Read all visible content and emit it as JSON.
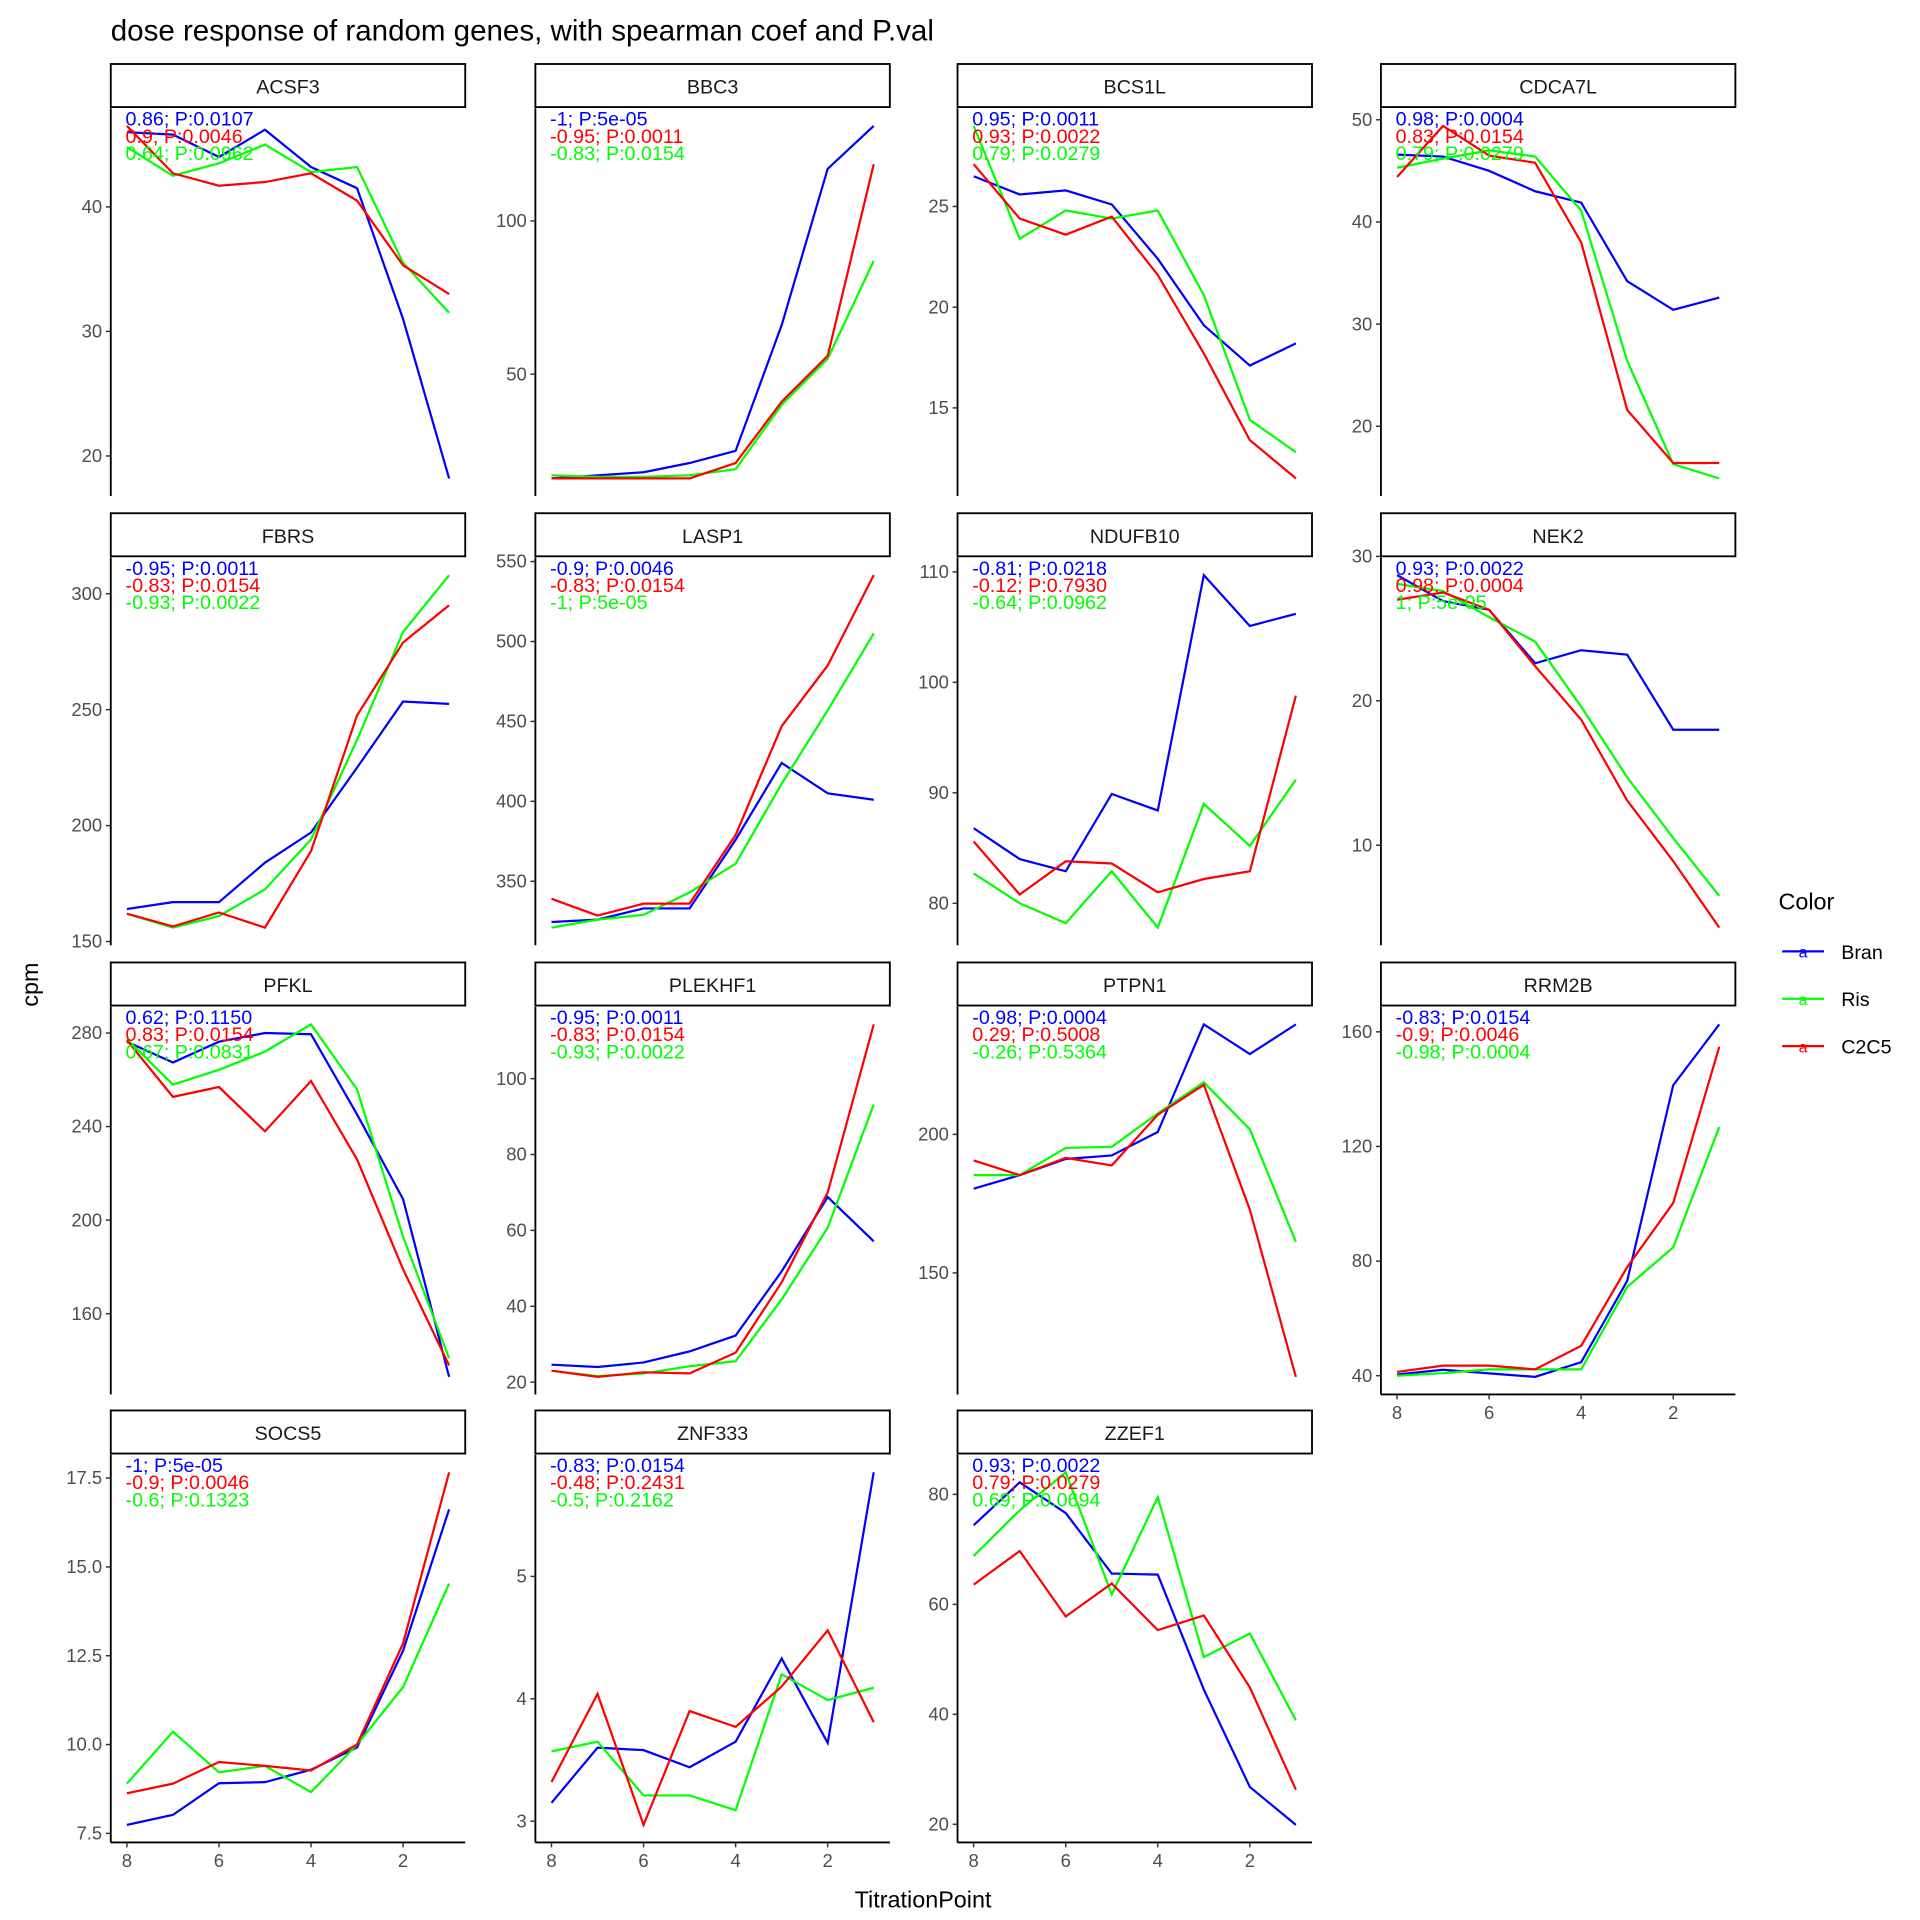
{
  "chart_data": {
    "type": "line",
    "title": "dose response of random genes, with spearman coef and P.val",
    "xlabel": "TitrationPoint",
    "ylabel": "cpm",
    "x": [
      8,
      7,
      6,
      5,
      4,
      3,
      2,
      1
    ],
    "x_axis_reversed": true,
    "x_ticks": [
      8,
      6,
      4,
      2
    ],
    "grid": false,
    "legend": {
      "title": "Color",
      "placement": "right",
      "key_glyph": "a",
      "entries": [
        {
          "name": "Bran",
          "color": "#0000FF"
        },
        {
          "name": "Ris",
          "color": "#00FF00"
        },
        {
          "name": "C2C5",
          "color": "#FF0000"
        }
      ]
    },
    "panels": [
      {
        "name": "ACSF3",
        "y_ticks": [
          "20",
          "30",
          "40"
        ],
        "annotations": [
          {
            "text": "0.86; P:0.0107",
            "color": "#0000FF"
          },
          {
            "text": "0.9; P:0.0046",
            "color": "#FF0000"
          },
          {
            "text": "0.64; P:0.0962",
            "color": "#00FF00"
          }
        ],
        "series": {
          "Bran": [
            46,
            45.8,
            44,
            46.2,
            43.2,
            41.5,
            31,
            18.2
          ],
          "Ris": [
            44.8,
            42.5,
            43.5,
            45,
            42.8,
            43.2,
            35.5,
            31.5
          ],
          "C2C5": [
            46.5,
            42.7,
            41.7,
            42,
            42.7,
            40.5,
            35.3,
            33
          ]
        }
      },
      {
        "name": "BBC3",
        "y_ticks": [
          "50",
          "100"
        ],
        "annotations": [
          {
            "text": "-1; P:5e-05",
            "color": "#0000FF"
          },
          {
            "text": "-0.95; P:0.0011",
            "color": "#FF0000"
          },
          {
            "text": "-0.83; P:0.0154",
            "color": "#00FF00"
          }
        ],
        "series": {
          "Bran": [
            16,
            17,
            18,
            21,
            25,
            66,
            117,
            131
          ],
          "Ris": [
            17,
            16.5,
            16.5,
            17,
            19,
            40,
            55,
            87
          ],
          "C2C5": [
            16,
            16,
            16,
            16,
            21,
            41,
            56,
            118.5
          ]
        }
      },
      {
        "name": "BCS1L",
        "y_ticks": [
          "15",
          "20",
          "25"
        ],
        "annotations": [
          {
            "text": "0.95; P:0.0011",
            "color": "#0000FF"
          },
          {
            "text": "0.93; P:0.0022",
            "color": "#FF0000"
          },
          {
            "text": "0.79; P:0.0279",
            "color": "#00FF00"
          }
        ],
        "series": {
          "Bran": [
            26.5,
            25.6,
            25.8,
            25.1,
            22.4,
            19.1,
            17.1,
            18.2
          ],
          "Ris": [
            29,
            23.4,
            24.8,
            24.4,
            24.8,
            20.6,
            14.4,
            12.8
          ],
          "C2C5": [
            27.1,
            24.4,
            23.6,
            24.5,
            21.6,
            17.7,
            13.4,
            11.5
          ]
        }
      },
      {
        "name": "CDCA7L",
        "y_ticks": [
          "20",
          "30",
          "40",
          "50"
        ],
        "annotations": [
          {
            "text": "0.98; P:0.0004",
            "color": "#0000FF"
          },
          {
            "text": "0.83; P:0.0154",
            "color": "#FF0000"
          },
          {
            "text": "0.79; P:0.0279",
            "color": "#00FF00"
          }
        ],
        "series": {
          "Bran": [
            46.6,
            46.4,
            45,
            43,
            41.9,
            34.2,
            31.4,
            32.6
          ],
          "Ris": [
            45.3,
            46.2,
            47,
            46.4,
            41.1,
            26.4,
            16.3,
            14.9
          ],
          "C2C5": [
            44.4,
            49.4,
            46.5,
            45.8,
            38,
            21.6,
            16.4,
            16.4
          ]
        }
      },
      {
        "name": "FBRS",
        "y_ticks": [
          "150",
          "200",
          "250",
          "300"
        ],
        "annotations": [
          {
            "text": "-0.95; P:0.0011",
            "color": "#0000FF"
          },
          {
            "text": "-0.83; P:0.0154",
            "color": "#FF0000"
          },
          {
            "text": "-0.93; P:0.0022",
            "color": "#00FF00"
          }
        ],
        "series": {
          "Bran": [
            164,
            167,
            167,
            184,
            197,
            225,
            253.5,
            252.5
          ],
          "Ris": [
            162,
            156,
            161,
            172.5,
            194,
            237,
            283.5,
            308
          ],
          "C2C5": [
            162,
            156.5,
            162.5,
            156,
            189,
            247.5,
            279,
            295
          ]
        }
      },
      {
        "name": "LASP1",
        "y_ticks": [
          "350",
          "400",
          "450",
          "500",
          "550"
        ],
        "annotations": [
          {
            "text": "-0.9; P:0.0046",
            "color": "#0000FF"
          },
          {
            "text": "-0.83; P:0.0154",
            "color": "#FF0000"
          },
          {
            "text": "-1; P:5e-05",
            "color": "#00FF00"
          }
        ],
        "series": {
          "Bran": [
            324.5,
            326,
            333,
            333,
            376,
            424,
            405,
            401
          ],
          "Ris": [
            321,
            326,
            329,
            343,
            361,
            411,
            457,
            505
          ],
          "C2C5": [
            339,
            328.5,
            336,
            336,
            379,
            447,
            485,
            541.5
          ]
        }
      },
      {
        "name": "NDUFB10",
        "y_ticks": [
          "80",
          "90",
          "100",
          "110"
        ],
        "annotations": [
          {
            "text": "-0.81; P:0.0218",
            "color": "#0000FF"
          },
          {
            "text": "-0.12; P:0.7930",
            "color": "#FF0000"
          },
          {
            "text": "-0.64; P:0.0962",
            "color": "#00FF00"
          }
        ],
        "series": {
          "Bran": [
            86.8,
            84,
            82.9,
            89.9,
            88.4,
            109.7,
            105.1,
            106.2
          ],
          "Ris": [
            82.7,
            80,
            78.2,
            82.9,
            77.8,
            89,
            85.2,
            91.2
          ],
          "C2C5": [
            85.6,
            80.8,
            83.8,
            83.6,
            81,
            82.2,
            82.9,
            98.8
          ]
        }
      },
      {
        "name": "NEK2",
        "y_ticks": [
          "10",
          "20",
          "30"
        ],
        "annotations": [
          {
            "text": "0.93; P:0.0022",
            "color": "#0000FF"
          },
          {
            "text": "0.98; P:0.0004",
            "color": "#FF0000"
          },
          {
            "text": "1; P:5e-05",
            "color": "#00FF00"
          }
        ],
        "series": {
          "Bran": [
            28.7,
            26.9,
            26.3,
            22.6,
            23.5,
            23.2,
            18,
            18
          ],
          "Ris": [
            28.1,
            27.6,
            25.8,
            24.1,
            19.6,
            14.7,
            10.5,
            6.5
          ],
          "C2C5": [
            27,
            27.5,
            26.3,
            22.4,
            18.7,
            13.1,
            8.9,
            4.3
          ]
        }
      },
      {
        "name": "PFKL",
        "y_ticks": [
          "160",
          "200",
          "240",
          "280"
        ],
        "annotations": [
          {
            "text": "0.62; P:0.1150",
            "color": "#0000FF"
          },
          {
            "text": "0.83; P:0.0154",
            "color": "#FF0000"
          },
          {
            "text": "0.67; P:0.0831",
            "color": "#00FF00"
          }
        ],
        "series": {
          "Bran": [
            276.3,
            267.4,
            276.3,
            280,
            279.5,
            245.2,
            209,
            133
          ],
          "Ris": [
            277.4,
            258,
            264.3,
            272.1,
            283.7,
            255.9,
            192.9,
            141
          ],
          "C2C5": [
            276.9,
            252.7,
            256.9,
            238,
            259.5,
            226,
            179,
            137.9
          ]
        }
      },
      {
        "name": "PLEKHF1",
        "y_ticks": [
          "20",
          "40",
          "60",
          "80",
          "100"
        ],
        "annotations": [
          {
            "text": "-0.95; P:0.0011",
            "color": "#0000FF"
          },
          {
            "text": "-0.83; P:0.0154",
            "color": "#FF0000"
          },
          {
            "text": "-0.93; P:0.0022",
            "color": "#00FF00"
          }
        ],
        "series": {
          "Bran": [
            24.6,
            24,
            25.2,
            28.1,
            32.3,
            49.2,
            68.8,
            57.1
          ],
          "Ris": [
            23,
            21.6,
            22.3,
            24.2,
            25.5,
            41.8,
            60.7,
            93.2
          ],
          "C2C5": [
            23,
            21.4,
            22.6,
            22.3,
            27.8,
            46.3,
            70,
            114.3
          ]
        }
      },
      {
        "name": "PTPN1",
        "y_ticks": [
          "150",
          "200"
        ],
        "annotations": [
          {
            "text": "-0.98; P:0.0004",
            "color": "#0000FF"
          },
          {
            "text": "0.29; P:0.5008",
            "color": "#FF0000"
          },
          {
            "text": "-0.26; P:0.5364",
            "color": "#00FF00"
          }
        ],
        "series": {
          "Bran": [
            180.4,
            185.3,
            191.1,
            192.4,
            200.9,
            239.7,
            229,
            239.7
          ],
          "Ris": [
            185.3,
            185.3,
            195.1,
            195.5,
            207.6,
            218.8,
            201.8,
            161.2
          ],
          "C2C5": [
            190.6,
            185.3,
            191.5,
            188.8,
            207.1,
            217.9,
            172.8,
            112.5
          ]
        }
      },
      {
        "name": "RRM2B",
        "y_ticks": [
          "40",
          "80",
          "120",
          "160"
        ],
        "annotations": [
          {
            "text": "-0.83; P:0.0154",
            "color": "#0000FF"
          },
          {
            "text": "-0.9; P:0.0046",
            "color": "#FF0000"
          },
          {
            "text": "-0.98; P:0.0004",
            "color": "#00FF00"
          }
        ],
        "series": {
          "Bran": [
            40.4,
            42.1,
            40.8,
            39.6,
            44.7,
            73.1,
            141.4,
            162.6
          ],
          "Ris": [
            40,
            40.9,
            42.2,
            42.2,
            42.2,
            71,
            84.8,
            126.8
          ],
          "C2C5": [
            41.3,
            43.5,
            43.5,
            42.2,
            50.4,
            77.9,
            100.3,
            154.8
          ]
        }
      },
      {
        "name": "SOCS5",
        "y_ticks": [
          "7.5",
          "10.0",
          "12.5",
          "15.0",
          "17.5"
        ],
        "annotations": [
          {
            "text": "-1; P:5e-05",
            "color": "#0000FF"
          },
          {
            "text": "-0.9; P:0.0046",
            "color": "#FF0000"
          },
          {
            "text": "-0.6; P:0.1323",
            "color": "#00FF00"
          }
        ],
        "series": {
          "Bran": [
            7.74,
            8.02,
            8.91,
            8.94,
            9.29,
            9.92,
            12.64,
            16.62
          ],
          "Ris": [
            8.9,
            10.36,
            9.22,
            9.4,
            8.66,
            10,
            11.62,
            14.53
          ],
          "C2C5": [
            8.63,
            8.9,
            9.51,
            9.4,
            9.27,
            10,
            12.85,
            17.66
          ]
        }
      },
      {
        "name": "ZNF333",
        "y_ticks": [
          "3",
          "4",
          "5"
        ],
        "annotations": [
          {
            "text": "-0.83; P:0.0154",
            "color": "#0000FF"
          },
          {
            "text": "-0.48; P:0.2431",
            "color": "#FF0000"
          },
          {
            "text": "-0.5; P:0.2162",
            "color": "#00FF00"
          }
        ],
        "series": {
          "Bran": [
            3.15,
            3.6,
            3.58,
            3.44,
            3.65,
            4.33,
            3.64,
            5.85
          ],
          "Ris": [
            3.57,
            3.65,
            3.21,
            3.21,
            3.09,
            4.2,
            3.99,
            4.09
          ],
          "C2C5": [
            3.32,
            4.04,
            2.97,
            3.9,
            3.77,
            4.1,
            4.56,
            3.81
          ]
        }
      },
      {
        "name": "ZZEF1",
        "y_ticks": [
          "20",
          "40",
          "60",
          "80"
        ],
        "annotations": [
          {
            "text": "0.93; P:0.0022",
            "color": "#0000FF"
          },
          {
            "text": "0.79; P:0.0279",
            "color": "#FF0000"
          },
          {
            "text": "0.69; P:0.0694",
            "color": "#00FF00"
          }
        ],
        "series": {
          "Bran": [
            74.4,
            82.2,
            76.6,
            65.6,
            65.4,
            44.5,
            26.8,
            19.9
          ],
          "Ris": [
            68.8,
            77.1,
            84,
            61.8,
            79.5,
            50.4,
            54.7,
            38.9
          ],
          "C2C5": [
            63.6,
            69.7,
            57.8,
            63.8,
            55.3,
            58,
            44.9,
            26.3
          ]
        }
      }
    ]
  }
}
